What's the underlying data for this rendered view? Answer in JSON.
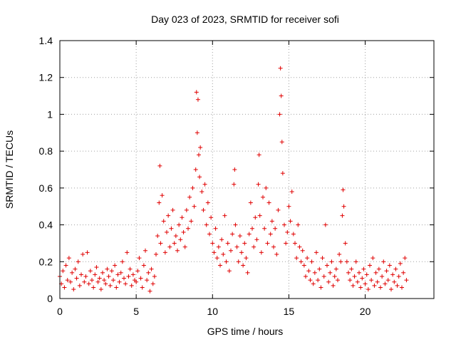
{
  "chart_data": {
    "type": "scatter",
    "title": "Day 023 of 2023, SRMTID for receiver sofi",
    "xlabel": "GPS time / hours",
    "ylabel": "SRMTID / TECUs",
    "xlim": [
      0,
      24.5
    ],
    "ylim": [
      0,
      1.4
    ],
    "xticks": [
      0,
      5,
      10,
      15,
      20
    ],
    "xtick_labels": [
      "0",
      "5",
      "10",
      "15",
      "20"
    ],
    "yticks": [
      0,
      0.2,
      0.4,
      0.6,
      0.8,
      1,
      1.2,
      1.4
    ],
    "ytick_labels": [
      "0",
      "0.2",
      "0.4",
      "0.6",
      "0.8",
      "1",
      "1.2",
      "1.4"
    ],
    "grid": true,
    "marker": "+",
    "marker_color": "#e00000",
    "series": [
      {
        "name": "SRMTID",
        "points": [
          [
            0.0,
            0.12
          ],
          [
            0.1,
            0.08
          ],
          [
            0.2,
            0.15
          ],
          [
            0.3,
            0.06
          ],
          [
            0.4,
            0.18
          ],
          [
            0.5,
            0.1
          ],
          [
            0.6,
            0.22
          ],
          [
            0.7,
            0.09
          ],
          [
            0.8,
            0.14
          ],
          [
            0.9,
            0.05
          ],
          [
            1.0,
            0.16
          ],
          [
            1.1,
            0.11
          ],
          [
            1.2,
            0.2
          ],
          [
            1.3,
            0.07
          ],
          [
            1.4,
            0.13
          ],
          [
            1.5,
            0.24
          ],
          [
            1.6,
            0.09
          ],
          [
            1.7,
            0.12
          ],
          [
            1.8,
            0.25
          ],
          [
            1.9,
            0.08
          ],
          [
            2.0,
            0.15
          ],
          [
            2.1,
            0.1
          ],
          [
            2.2,
            0.06
          ],
          [
            2.3,
            0.13
          ],
          [
            2.4,
            0.17
          ],
          [
            2.5,
            0.09
          ],
          [
            2.6,
            0.11
          ],
          [
            2.7,
            0.05
          ],
          [
            2.8,
            0.14
          ],
          [
            2.9,
            0.1
          ],
          [
            3.0,
            0.08
          ],
          [
            3.1,
            0.16
          ],
          [
            3.2,
            0.12
          ],
          [
            3.3,
            0.07
          ],
          [
            3.4,
            0.15
          ],
          [
            3.5,
            0.1
          ],
          [
            3.6,
            0.18
          ],
          [
            3.7,
            0.06
          ],
          [
            3.8,
            0.13
          ],
          [
            3.9,
            0.09
          ],
          [
            4.0,
            0.14
          ],
          [
            4.1,
            0.2
          ],
          [
            4.2,
            0.11
          ],
          [
            4.3,
            0.08
          ],
          [
            4.4,
            0.25
          ],
          [
            4.5,
            0.12
          ],
          [
            4.6,
            0.16
          ],
          [
            4.7,
            0.07
          ],
          [
            4.8,
            0.13
          ],
          [
            4.9,
            0.1
          ],
          [
            5.0,
            0.09
          ],
          [
            5.1,
            0.15
          ],
          [
            5.2,
            0.22
          ],
          [
            5.3,
            0.11
          ],
          [
            5.4,
            0.06
          ],
          [
            5.5,
            0.18
          ],
          [
            5.6,
            0.26
          ],
          [
            5.7,
            0.1
          ],
          [
            5.8,
            0.14
          ],
          [
            5.9,
            0.04
          ],
          [
            6.0,
            0.16
          ],
          [
            6.1,
            0.08
          ],
          [
            6.2,
            0.12
          ],
          [
            6.3,
            0.24
          ],
          [
            6.4,
            0.34
          ],
          [
            6.5,
            0.52
          ],
          [
            6.55,
            0.72
          ],
          [
            6.6,
            0.3
          ],
          [
            6.7,
            0.56
          ],
          [
            6.8,
            0.42
          ],
          [
            6.9,
            0.25
          ],
          [
            7.0,
            0.36
          ],
          [
            7.1,
            0.45
          ],
          [
            7.2,
            0.28
          ],
          [
            7.3,
            0.38
          ],
          [
            7.4,
            0.48
          ],
          [
            7.5,
            0.3
          ],
          [
            7.6,
            0.34
          ],
          [
            7.7,
            0.26
          ],
          [
            7.8,
            0.4
          ],
          [
            7.9,
            0.32
          ],
          [
            8.0,
            0.44
          ],
          [
            8.1,
            0.36
          ],
          [
            8.2,
            0.28
          ],
          [
            8.3,
            0.48
          ],
          [
            8.4,
            0.38
          ],
          [
            8.5,
            0.55
          ],
          [
            8.6,
            0.42
          ],
          [
            8.7,
            0.6
          ],
          [
            8.8,
            0.5
          ],
          [
            8.9,
            0.7
          ],
          [
            8.95,
            1.12
          ],
          [
            9.0,
            0.9
          ],
          [
            9.05,
            1.08
          ],
          [
            9.1,
            0.78
          ],
          [
            9.15,
            0.66
          ],
          [
            9.2,
            0.82
          ],
          [
            9.3,
            0.58
          ],
          [
            9.4,
            0.48
          ],
          [
            9.5,
            0.62
          ],
          [
            9.6,
            0.4
          ],
          [
            9.7,
            0.52
          ],
          [
            9.8,
            0.35
          ],
          [
            9.9,
            0.44
          ],
          [
            10.0,
            0.3
          ],
          [
            10.1,
            0.25
          ],
          [
            10.2,
            0.38
          ],
          [
            10.3,
            0.22
          ],
          [
            10.4,
            0.28
          ],
          [
            10.5,
            0.18
          ],
          [
            10.6,
            0.32
          ],
          [
            10.7,
            0.24
          ],
          [
            10.8,
            0.45
          ],
          [
            10.9,
            0.2
          ],
          [
            11.0,
            0.3
          ],
          [
            11.1,
            0.15
          ],
          [
            11.2,
            0.26
          ],
          [
            11.3,
            0.35
          ],
          [
            11.4,
            0.62
          ],
          [
            11.45,
            0.7
          ],
          [
            11.5,
            0.4
          ],
          [
            11.6,
            0.28
          ],
          [
            11.7,
            0.2
          ],
          [
            11.8,
            0.34
          ],
          [
            11.9,
            0.25
          ],
          [
            12.0,
            0.18
          ],
          [
            12.1,
            0.3
          ],
          [
            12.2,
            0.22
          ],
          [
            12.3,
            0.14
          ],
          [
            12.4,
            0.35
          ],
          [
            12.5,
            0.52
          ],
          [
            12.6,
            0.38
          ],
          [
            12.7,
            0.28
          ],
          [
            12.8,
            0.44
          ],
          [
            12.9,
            0.32
          ],
          [
            13.0,
            0.62
          ],
          [
            13.05,
            0.78
          ],
          [
            13.1,
            0.45
          ],
          [
            13.2,
            0.25
          ],
          [
            13.3,
            0.55
          ],
          [
            13.4,
            0.38
          ],
          [
            13.5,
            0.6
          ],
          [
            13.6,
            0.3
          ],
          [
            13.7,
            0.52
          ],
          [
            13.8,
            0.35
          ],
          [
            13.9,
            0.42
          ],
          [
            14.0,
            0.28
          ],
          [
            14.1,
            0.38
          ],
          [
            14.2,
            0.24
          ],
          [
            14.3,
            0.48
          ],
          [
            14.4,
            1.0
          ],
          [
            14.45,
            1.25
          ],
          [
            14.5,
            1.1
          ],
          [
            14.55,
            0.85
          ],
          [
            14.6,
            0.68
          ],
          [
            14.7,
            0.4
          ],
          [
            14.8,
            0.3
          ],
          [
            14.9,
            0.36
          ],
          [
            15.0,
            0.5
          ],
          [
            15.1,
            0.42
          ],
          [
            15.2,
            0.58
          ],
          [
            15.3,
            0.35
          ],
          [
            15.4,
            0.3
          ],
          [
            15.5,
            0.22
          ],
          [
            15.6,
            0.4
          ],
          [
            15.7,
            0.28
          ],
          [
            15.8,
            0.2
          ],
          [
            15.9,
            0.26
          ],
          [
            16.0,
            0.18
          ],
          [
            16.1,
            0.12
          ],
          [
            16.2,
            0.22
          ],
          [
            16.3,
            0.15
          ],
          [
            16.4,
            0.1
          ],
          [
            16.5,
            0.2
          ],
          [
            16.6,
            0.08
          ],
          [
            16.7,
            0.14
          ],
          [
            16.8,
            0.25
          ],
          [
            16.9,
            0.1
          ],
          [
            17.0,
            0.16
          ],
          [
            17.1,
            0.06
          ],
          [
            17.2,
            0.22
          ],
          [
            17.3,
            0.12
          ],
          [
            17.4,
            0.4
          ],
          [
            17.5,
            0.18
          ],
          [
            17.6,
            0.09
          ],
          [
            17.7,
            0.14
          ],
          [
            17.8,
            0.2
          ],
          [
            17.9,
            0.07
          ],
          [
            18.0,
            0.12
          ],
          [
            18.1,
            0.16
          ],
          [
            18.2,
            0.1
          ],
          [
            18.3,
            0.24
          ],
          [
            18.4,
            0.2
          ],
          [
            18.5,
            0.45
          ],
          [
            18.55,
            0.59
          ],
          [
            18.6,
            0.5
          ],
          [
            18.7,
            0.3
          ],
          [
            18.8,
            0.2
          ],
          [
            18.9,
            0.14
          ],
          [
            19.0,
            0.1
          ],
          [
            19.1,
            0.16
          ],
          [
            19.2,
            0.07
          ],
          [
            19.3,
            0.12
          ],
          [
            19.4,
            0.2
          ],
          [
            19.5,
            0.09
          ],
          [
            19.6,
            0.14
          ],
          [
            19.7,
            0.06
          ],
          [
            19.8,
            0.11
          ],
          [
            19.9,
            0.16
          ],
          [
            20.0,
            0.08
          ],
          [
            20.1,
            0.13
          ],
          [
            20.2,
            0.05
          ],
          [
            20.3,
            0.18
          ],
          [
            20.4,
            0.1
          ],
          [
            20.5,
            0.22
          ],
          [
            20.6,
            0.07
          ],
          [
            20.7,
            0.14
          ],
          [
            20.8,
            0.09
          ],
          [
            20.9,
            0.16
          ],
          [
            21.0,
            0.06
          ],
          [
            21.1,
            0.12
          ],
          [
            21.2,
            0.2
          ],
          [
            21.3,
            0.08
          ],
          [
            21.4,
            0.15
          ],
          [
            21.5,
            0.1
          ],
          [
            21.6,
            0.18
          ],
          [
            21.7,
            0.05
          ],
          [
            21.8,
            0.13
          ],
          [
            21.9,
            0.09
          ],
          [
            22.0,
            0.16
          ],
          [
            22.1,
            0.07
          ],
          [
            22.2,
            0.12
          ],
          [
            22.3,
            0.19
          ],
          [
            22.4,
            0.06
          ],
          [
            22.5,
            0.14
          ],
          [
            22.6,
            0.22
          ],
          [
            22.7,
            0.1
          ]
        ]
      }
    ]
  }
}
